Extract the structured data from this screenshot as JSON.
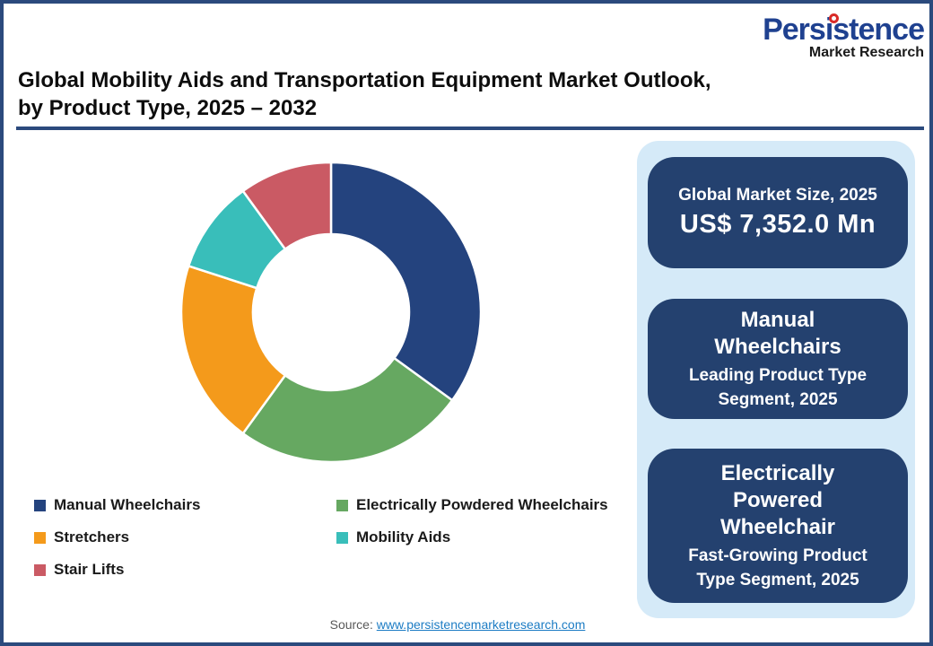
{
  "brand": {
    "wordmark": "Persistence",
    "subtitle": "Market Research",
    "wordmark_color": "#1F4190",
    "gear_color": "#D92B28"
  },
  "title": {
    "line1": "Global Mobility Aids and Transportation Equipment Market Outlook,",
    "line2": "by Product Type, 2025 – 2032"
  },
  "chart_data": {
    "type": "pie",
    "subtype": "donut",
    "title": "Global Mobility Aids and Transportation Equipment Market Outlook, by Product Type, 2025 – 2032",
    "categories": [
      "Manual Wheelchairs",
      "Electrically Powdered Wheelchairs",
      "Stretchers",
      "Mobility Aids",
      "Stair Lifts"
    ],
    "values": [
      35,
      25,
      20,
      10,
      10
    ],
    "unit": "% share (estimated from arc angles; no data labels shown)",
    "colors": [
      "#24437E",
      "#66A861",
      "#F49A1B",
      "#39BEBA",
      "#CA5A64"
    ],
    "start_angle_deg": 0,
    "direction": "clockwise",
    "donut_hole_ratio": 0.52,
    "legend_position": "bottom-left",
    "grid": false
  },
  "panel": {
    "background": "#D5EAF8",
    "card_background": "#24416F",
    "cards": [
      {
        "label": "Global Market Size, 2025",
        "value": "US$ 7,352.0 Mn"
      },
      {
        "heading": "Manual\nWheelchairs",
        "sub": "Leading Product Type\nSegment, 2025"
      },
      {
        "heading": "Electrically\nPowered\nWheelchair",
        "sub": "Fast-Growing Product\nType  Segment, 2025"
      }
    ]
  },
  "source": {
    "label": "Source:",
    "link": "www.persistencemarketresearch.com"
  },
  "colors": {
    "frame_border": "#2B4A7D",
    "title_rule": "#2B4A7D",
    "source_link": "#1C7CC4"
  }
}
